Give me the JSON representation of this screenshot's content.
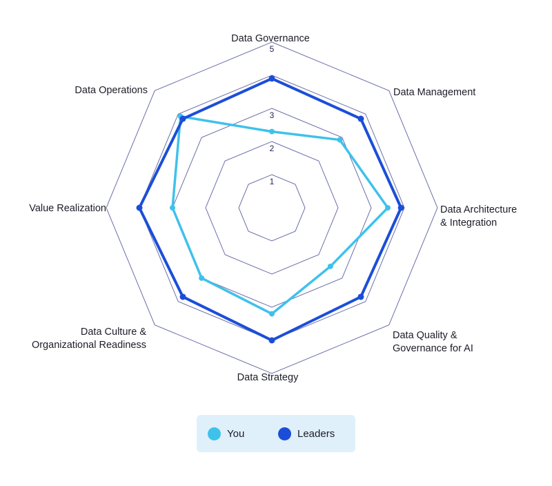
{
  "chart_data": {
    "type": "radar",
    "axes": [
      [
        "Data Governance"
      ],
      [
        "Data Management"
      ],
      [
        "Data Architecture",
        "& Integration"
      ],
      [
        "Data Quality &",
        "Governance for AI"
      ],
      [
        "Data Strategy"
      ],
      [
        "Data Culture &",
        "Organizational Readiness"
      ],
      [
        "Value Realization"
      ],
      [
        "Data Operations"
      ]
    ],
    "range": [
      0,
      5
    ],
    "tick_labels": [
      "1",
      "2",
      "3",
      "5"
    ],
    "tick_values": [
      1,
      2,
      3,
      5
    ],
    "rings": [
      1,
      2,
      3,
      4,
      5
    ],
    "series": [
      {
        "name": "You",
        "color": "#3fc1ec",
        "values": [
          2.3,
          2.9,
          3.5,
          2.5,
          3.2,
          3.0,
          3.0,
          3.9
        ]
      },
      {
        "name": "Leaders",
        "color": "#1b4ed8",
        "values": [
          3.9,
          3.8,
          3.9,
          3.8,
          4.0,
          3.8,
          4.0,
          3.8
        ]
      }
    ],
    "grid_color": "#6b6fa8"
  },
  "legend": {
    "items": [
      {
        "label": "You",
        "color": "#3fc1ec"
      },
      {
        "label": "Leaders",
        "color": "#1b4ed8"
      }
    ]
  }
}
